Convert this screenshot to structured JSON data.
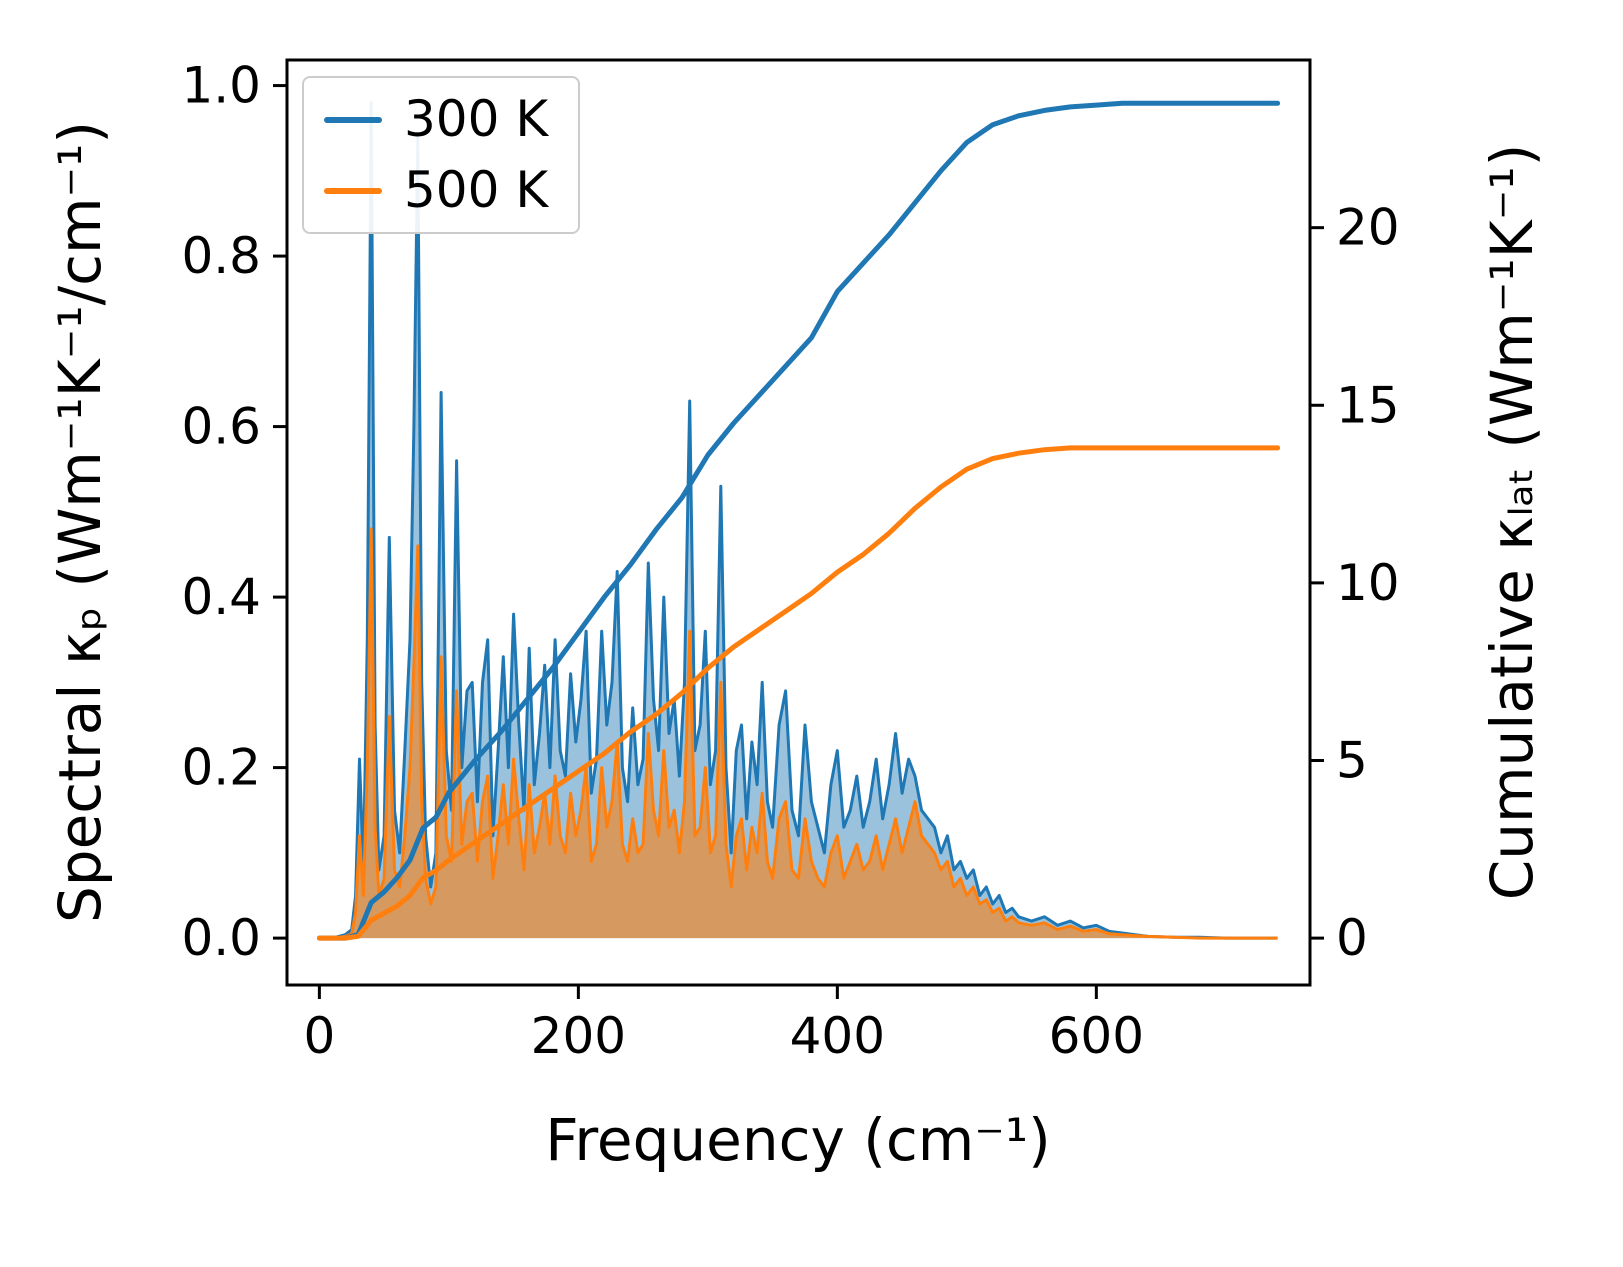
{
  "figure": {
    "background": "#ffffff"
  },
  "chart_data": {
    "type": "line+area",
    "title": "",
    "xlabel": "Frequency (cm⁻¹)",
    "ylabel_left": "Spectral κₚ (Wm⁻¹K⁻¹/cm⁻¹)",
    "ylabel_right": "Cumulative κₗₐₜ (Wm⁻¹K⁻¹)",
    "grid": false,
    "xlim": [
      -25,
      765
    ],
    "ylim_left": [
      -0.055,
      1.03
    ],
    "ylim_right": [
      -1.32,
      24.72
    ],
    "xticks": [
      {
        "v": 0,
        "label": "0"
      },
      {
        "v": 200,
        "label": "200"
      },
      {
        "v": 400,
        "label": "400"
      },
      {
        "v": 600,
        "label": "600"
      }
    ],
    "yticks_left": [
      {
        "v": 0.0,
        "label": "0.0"
      },
      {
        "v": 0.2,
        "label": "0.2"
      },
      {
        "v": 0.4,
        "label": "0.4"
      },
      {
        "v": 0.6,
        "label": "0.6"
      },
      {
        "v": 0.8,
        "label": "0.8"
      },
      {
        "v": 1.0,
        "label": "1.0"
      }
    ],
    "yticks_right": [
      {
        "v": 0,
        "label": "0"
      },
      {
        "v": 5,
        "label": "5"
      },
      {
        "v": 10,
        "label": "10"
      },
      {
        "v": 15,
        "label": "15"
      },
      {
        "v": 20,
        "label": "20"
      }
    ],
    "legend": {
      "position": "upper-left",
      "entries": [
        {
          "label": "300 K",
          "color": "#1f77b4"
        },
        {
          "label": "500 K",
          "color": "#ff7f0e"
        }
      ]
    },
    "spectral": {
      "x": [
        0,
        10,
        20,
        25,
        28,
        31,
        34,
        37,
        40,
        43,
        46,
        50,
        54,
        58,
        62,
        66,
        70,
        73,
        76,
        79,
        82,
        86,
        90,
        94,
        98,
        102,
        106,
        110,
        114,
        118,
        122,
        126,
        130,
        134,
        138,
        142,
        146,
        150,
        154,
        158,
        162,
        166,
        170,
        174,
        178,
        182,
        186,
        190,
        194,
        198,
        202,
        206,
        210,
        214,
        218,
        222,
        226,
        230,
        234,
        238,
        242,
        246,
        250,
        254,
        258,
        262,
        266,
        270,
        274,
        278,
        282,
        286,
        290,
        294,
        298,
        302,
        306,
        310,
        314,
        318,
        322,
        326,
        330,
        334,
        338,
        342,
        346,
        350,
        355,
        360,
        365,
        370,
        375,
        380,
        385,
        390,
        395,
        400,
        405,
        410,
        415,
        420,
        425,
        430,
        435,
        440,
        445,
        450,
        455,
        460,
        465,
        470,
        475,
        480,
        485,
        490,
        495,
        500,
        505,
        510,
        515,
        520,
        525,
        530,
        535,
        540,
        550,
        560,
        570,
        580,
        590,
        600,
        610,
        620,
        630,
        640,
        660,
        680,
        700,
        740
      ],
      "series": [
        {
          "id": "300k",
          "name": "300 K",
          "color": "#1f77b4",
          "fill_opacity": 0.45,
          "values": [
            0,
            0,
            0.004,
            0.01,
            0.05,
            0.21,
            0.08,
            0.35,
            0.98,
            0.25,
            0.08,
            0.12,
            0.47,
            0.15,
            0.1,
            0.22,
            0.35,
            0.6,
            0.94,
            0.3,
            0.12,
            0.06,
            0.1,
            0.64,
            0.22,
            0.15,
            0.56,
            0.2,
            0.29,
            0.3,
            0.16,
            0.3,
            0.35,
            0.12,
            0.22,
            0.33,
            0.2,
            0.38,
            0.25,
            0.15,
            0.34,
            0.18,
            0.24,
            0.32,
            0.2,
            0.35,
            0.22,
            0.19,
            0.31,
            0.23,
            0.28,
            0.36,
            0.17,
            0.21,
            0.36,
            0.25,
            0.3,
            0.43,
            0.2,
            0.16,
            0.27,
            0.18,
            0.21,
            0.44,
            0.28,
            0.22,
            0.4,
            0.24,
            0.28,
            0.19,
            0.3,
            0.63,
            0.22,
            0.25,
            0.36,
            0.18,
            0.22,
            0.53,
            0.2,
            0.1,
            0.22,
            0.25,
            0.14,
            0.23,
            0.18,
            0.3,
            0.16,
            0.13,
            0.25,
            0.29,
            0.15,
            0.12,
            0.25,
            0.16,
            0.13,
            0.1,
            0.18,
            0.22,
            0.13,
            0.15,
            0.19,
            0.13,
            0.16,
            0.21,
            0.14,
            0.18,
            0.24,
            0.17,
            0.21,
            0.19,
            0.15,
            0.14,
            0.13,
            0.1,
            0.12,
            0.08,
            0.09,
            0.07,
            0.08,
            0.05,
            0.06,
            0.04,
            0.05,
            0.03,
            0.035,
            0.025,
            0.02,
            0.025,
            0.015,
            0.02,
            0.012,
            0.015,
            0.008,
            0.006,
            0.004,
            0.002,
            0.001,
            0.001,
            0,
            0
          ]
        },
        {
          "id": "500k",
          "name": "500 K",
          "color": "#ff7f0e",
          "fill_opacity": 0.6,
          "values": [
            0,
            0,
            0.002,
            0.005,
            0.03,
            0.12,
            0.05,
            0.2,
            0.48,
            0.13,
            0.05,
            0.07,
            0.26,
            0.08,
            0.06,
            0.12,
            0.2,
            0.32,
            0.46,
            0.16,
            0.07,
            0.04,
            0.06,
            0.33,
            0.12,
            0.09,
            0.29,
            0.11,
            0.16,
            0.17,
            0.09,
            0.16,
            0.19,
            0.07,
            0.12,
            0.18,
            0.11,
            0.21,
            0.14,
            0.08,
            0.18,
            0.1,
            0.13,
            0.17,
            0.11,
            0.19,
            0.12,
            0.1,
            0.17,
            0.12,
            0.15,
            0.2,
            0.09,
            0.11,
            0.2,
            0.13,
            0.16,
            0.23,
            0.11,
            0.09,
            0.14,
            0.1,
            0.11,
            0.24,
            0.15,
            0.12,
            0.22,
            0.13,
            0.15,
            0.1,
            0.16,
            0.36,
            0.12,
            0.13,
            0.2,
            0.1,
            0.12,
            0.3,
            0.11,
            0.06,
            0.12,
            0.14,
            0.08,
            0.13,
            0.1,
            0.17,
            0.09,
            0.07,
            0.14,
            0.16,
            0.08,
            0.07,
            0.14,
            0.09,
            0.07,
            0.06,
            0.1,
            0.12,
            0.07,
            0.09,
            0.11,
            0.08,
            0.09,
            0.12,
            0.08,
            0.11,
            0.14,
            0.1,
            0.13,
            0.16,
            0.12,
            0.11,
            0.1,
            0.08,
            0.09,
            0.06,
            0.07,
            0.05,
            0.06,
            0.04,
            0.045,
            0.03,
            0.035,
            0.02,
            0.025,
            0.018,
            0.015,
            0.018,
            0.01,
            0.014,
            0.008,
            0.01,
            0.005,
            0.004,
            0.003,
            0.002,
            0.001,
            0,
            0,
            0
          ]
        }
      ]
    },
    "cumulative": {
      "x": [
        0,
        20,
        30,
        40,
        50,
        60,
        70,
        80,
        90,
        100,
        120,
        140,
        160,
        180,
        200,
        220,
        240,
        260,
        280,
        300,
        320,
        340,
        360,
        380,
        400,
        420,
        440,
        460,
        480,
        500,
        520,
        540,
        560,
        580,
        600,
        620,
        650,
        700,
        740
      ],
      "series": [
        {
          "id": "300k",
          "name": "300 K",
          "color": "#1f77b4",
          "saturation_value": 23.5,
          "values": [
            0,
            0,
            0.1,
            1.0,
            1.3,
            1.7,
            2.2,
            3.1,
            3.4,
            4.1,
            5.0,
            5.8,
            6.7,
            7.6,
            8.6,
            9.6,
            10.5,
            11.5,
            12.4,
            13.6,
            14.5,
            15.3,
            16.1,
            16.9,
            18.2,
            19.0,
            19.8,
            20.7,
            21.6,
            22.4,
            22.9,
            23.15,
            23.3,
            23.4,
            23.45,
            23.5,
            23.5,
            23.5,
            23.5
          ]
        },
        {
          "id": "500k",
          "name": "500 K",
          "color": "#ff7f0e",
          "saturation_value": 13.8,
          "values": [
            0,
            0,
            0.05,
            0.5,
            0.7,
            0.9,
            1.2,
            1.7,
            1.9,
            2.2,
            2.7,
            3.2,
            3.7,
            4.2,
            4.7,
            5.2,
            5.8,
            6.3,
            6.9,
            7.6,
            8.2,
            8.7,
            9.2,
            9.7,
            10.3,
            10.8,
            11.4,
            12.1,
            12.7,
            13.2,
            13.5,
            13.65,
            13.75,
            13.8,
            13.8,
            13.8,
            13.8,
            13.8,
            13.8
          ]
        }
      ]
    }
  }
}
